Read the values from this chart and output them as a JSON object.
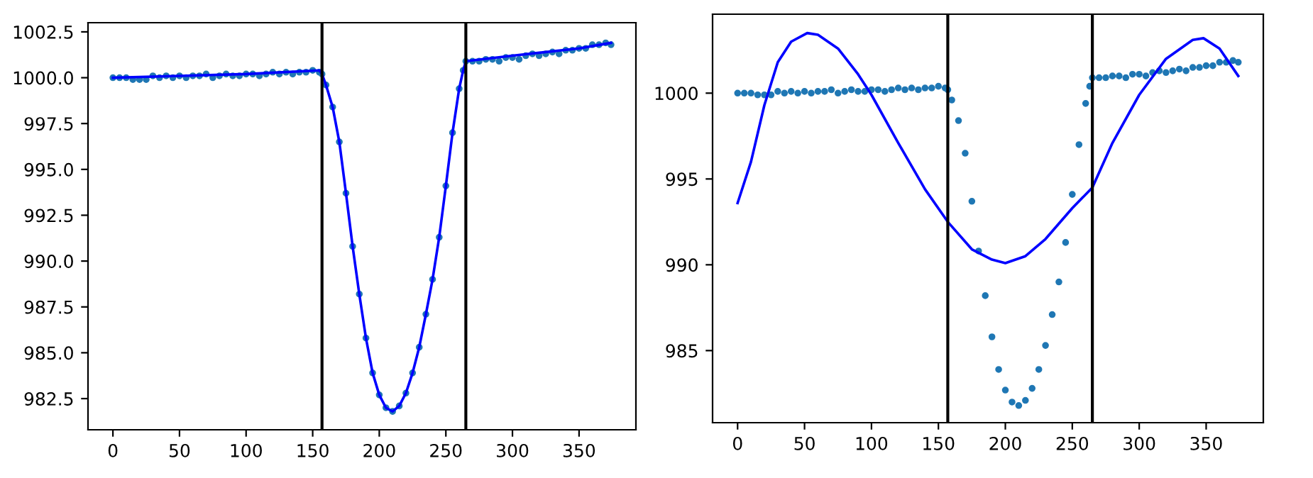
{
  "chart_data": [
    {
      "type": "scatter",
      "xlim": [
        -18.7,
        392.7
      ],
      "ylim": [
        980.8,
        1003.0
      ],
      "xticks": [
        0,
        50,
        100,
        150,
        200,
        250,
        300,
        350
      ],
      "yticks": [
        982.5,
        {
          "value": 985,
          "label": "985.0"
        },
        987.5,
        {
          "value": 990,
          "label": "990.0"
        },
        992.5,
        {
          "value": 995,
          "label": "995.0"
        },
        997.5,
        {
          "value": 1000,
          "label": "1000.0"
        },
        1002.5
      ],
      "grid": false,
      "ref_lines": [
        {
          "axis": "x",
          "value": 157,
          "color": "#000000"
        },
        {
          "axis": "x",
          "value": 265,
          "color": "#000000"
        }
      ],
      "series": [
        {
          "color": "#1f77b4",
          "marker": "circle",
          "x": [
            0,
            5,
            10,
            15,
            20,
            25,
            30,
            35,
            40,
            45,
            50,
            55,
            60,
            65,
            70,
            75,
            80,
            85,
            90,
            95,
            100,
            105,
            110,
            115,
            120,
            125,
            130,
            135,
            140,
            145,
            150,
            155,
            157,
            160,
            165,
            170,
            175,
            180,
            185,
            190,
            195,
            200,
            205,
            210,
            215,
            220,
            225,
            230,
            235,
            240,
            245,
            250,
            255,
            260,
            263,
            265,
            270,
            275,
            280,
            285,
            290,
            295,
            300,
            305,
            310,
            315,
            320,
            325,
            330,
            335,
            340,
            345,
            350,
            355,
            360,
            365,
            370,
            374
          ],
          "values": [
            1000.0,
            1000.0,
            1000.0,
            999.9,
            999.9,
            999.9,
            1000.1,
            1000.0,
            1000.1,
            1000.0,
            1000.1,
            1000.0,
            1000.1,
            1000.1,
            1000.2,
            1000.0,
            1000.1,
            1000.2,
            1000.1,
            1000.1,
            1000.2,
            1000.2,
            1000.1,
            1000.2,
            1000.3,
            1000.2,
            1000.3,
            1000.2,
            1000.3,
            1000.3,
            1000.4,
            1000.3,
            1000.2,
            999.6,
            998.4,
            996.5,
            993.7,
            990.8,
            988.2,
            985.8,
            983.9,
            982.7,
            982.0,
            981.8,
            982.1,
            982.8,
            983.9,
            985.3,
            987.1,
            989.0,
            991.3,
            994.1,
            997.0,
            999.4,
            1000.4,
            1000.9,
            1000.9,
            1000.9,
            1001.0,
            1001.0,
            1000.9,
            1001.1,
            1001.1,
            1001.0,
            1001.2,
            1001.3,
            1001.2,
            1001.3,
            1001.4,
            1001.3,
            1001.5,
            1001.5,
            1001.6,
            1001.6,
            1001.8,
            1001.8,
            1001.9,
            1001.8
          ]
        },
        {
          "type": "line",
          "color": "#0000ff",
          "marker": "none",
          "x": [
            0,
            50,
            100,
            155,
            157,
            160,
            165,
            170,
            175,
            180,
            185,
            190,
            195,
            200,
            205,
            210,
            215,
            220,
            225,
            230,
            235,
            240,
            245,
            250,
            255,
            260,
            263,
            265,
            300,
            350,
            374
          ],
          "values": [
            1000.0,
            1000.1,
            1000.2,
            1000.4,
            1000.2,
            999.6,
            998.4,
            996.5,
            993.7,
            990.8,
            988.2,
            985.8,
            983.9,
            982.7,
            982.0,
            981.8,
            982.1,
            982.8,
            983.9,
            985.3,
            987.1,
            989.0,
            991.3,
            994.1,
            997.0,
            999.4,
            1000.4,
            1000.9,
            1001.2,
            1001.6,
            1001.9
          ]
        }
      ]
    },
    {
      "type": "scatter",
      "xlim": [
        -18.7,
        392.7
      ],
      "ylim": [
        980.8,
        1004.6
      ],
      "xticks": [
        0,
        50,
        100,
        150,
        200,
        250,
        300,
        350
      ],
      "yticks": [
        985,
        990,
        995,
        1000
      ],
      "grid": false,
      "ref_lines": [
        {
          "axis": "x",
          "value": 157,
          "color": "#000000"
        },
        {
          "axis": "x",
          "value": 265,
          "color": "#000000"
        }
      ],
      "series": [
        {
          "color": "#1f77b4",
          "marker": "circle",
          "x": [
            0,
            5,
            10,
            15,
            20,
            25,
            30,
            35,
            40,
            45,
            50,
            55,
            60,
            65,
            70,
            75,
            80,
            85,
            90,
            95,
            100,
            105,
            110,
            115,
            120,
            125,
            130,
            135,
            140,
            145,
            150,
            155,
            157,
            160,
            165,
            170,
            175,
            180,
            185,
            190,
            195,
            200,
            205,
            210,
            215,
            220,
            225,
            230,
            235,
            240,
            245,
            250,
            255,
            260,
            263,
            265,
            270,
            275,
            280,
            285,
            290,
            295,
            300,
            305,
            310,
            315,
            320,
            325,
            330,
            335,
            340,
            345,
            350,
            355,
            360,
            365,
            370,
            374
          ],
          "values": [
            1000.0,
            1000.0,
            1000.0,
            999.9,
            999.9,
            999.9,
            1000.1,
            1000.0,
            1000.1,
            1000.0,
            1000.1,
            1000.0,
            1000.1,
            1000.1,
            1000.2,
            1000.0,
            1000.1,
            1000.2,
            1000.1,
            1000.1,
            1000.2,
            1000.2,
            1000.1,
            1000.2,
            1000.3,
            1000.2,
            1000.3,
            1000.2,
            1000.3,
            1000.3,
            1000.4,
            1000.3,
            1000.2,
            999.6,
            998.4,
            996.5,
            993.7,
            990.8,
            988.2,
            985.8,
            983.9,
            982.7,
            982.0,
            981.8,
            982.1,
            982.8,
            983.9,
            985.3,
            987.1,
            989.0,
            991.3,
            994.1,
            997.0,
            999.4,
            1000.4,
            1000.9,
            1000.9,
            1000.9,
            1001.0,
            1001.0,
            1000.9,
            1001.1,
            1001.1,
            1001.0,
            1001.2,
            1001.3,
            1001.2,
            1001.3,
            1001.4,
            1001.3,
            1001.5,
            1001.5,
            1001.6,
            1001.6,
            1001.8,
            1001.8,
            1001.9,
            1001.8
          ]
        },
        {
          "type": "line",
          "color": "#0000ff",
          "marker": "none",
          "x": [
            0,
            10,
            20,
            30,
            40,
            52,
            60,
            75,
            90,
            100,
            120,
            140,
            157,
            175,
            190,
            200,
            215,
            230,
            250,
            265,
            280,
            300,
            320,
            340,
            348,
            360,
            374
          ],
          "values": [
            993.6,
            996.0,
            999.3,
            1001.8,
            1003.0,
            1003.5,
            1003.4,
            1002.6,
            1001.1,
            999.9,
            997.1,
            994.4,
            992.5,
            990.9,
            990.3,
            990.1,
            990.5,
            991.5,
            993.3,
            994.5,
            997.1,
            999.9,
            1002.0,
            1003.1,
            1003.2,
            1002.6,
            1001.0
          ]
        }
      ]
    }
  ]
}
